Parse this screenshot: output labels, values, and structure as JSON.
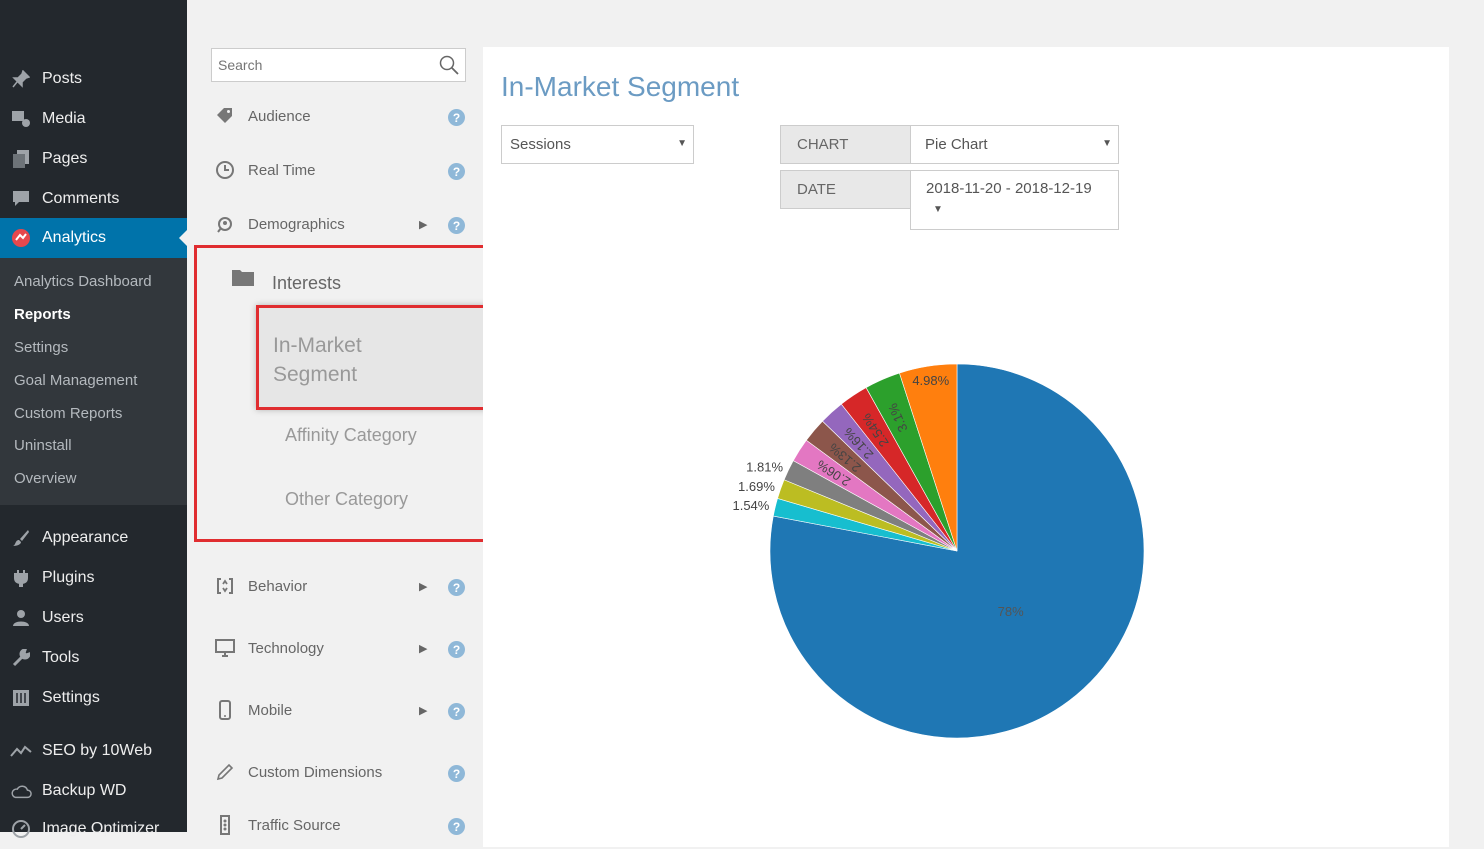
{
  "wp_menu": [
    {
      "label": "Posts",
      "icon": "pin-icon"
    },
    {
      "label": "Media",
      "icon": "media-icon"
    },
    {
      "label": "Pages",
      "icon": "pages-icon"
    },
    {
      "label": "Comments",
      "icon": "comment-icon"
    },
    {
      "label": "Analytics",
      "icon": "analytics-icon",
      "active": true
    },
    {
      "label": "Appearance",
      "icon": "brush-icon"
    },
    {
      "label": "Plugins",
      "icon": "plugin-icon"
    },
    {
      "label": "Users",
      "icon": "users-icon"
    },
    {
      "label": "Tools",
      "icon": "wrench-icon"
    },
    {
      "label": "Settings",
      "icon": "settings-icon"
    },
    {
      "label": "SEO by 10Web",
      "icon": "seo-icon"
    },
    {
      "label": "Backup WD",
      "icon": "cloud-icon"
    },
    {
      "label": "Image Optimizer",
      "icon": "gauge-icon"
    }
  ],
  "wp_submenu": [
    "Analytics Dashboard",
    "Reports",
    "Settings",
    "Goal Management",
    "Custom Reports",
    "Uninstall",
    "Overview"
  ],
  "search": {
    "placeholder": "Search",
    "value": ""
  },
  "report_nav": {
    "audience": "Audience",
    "real_time": "Real Time",
    "demographics": "Demographics",
    "interests": "Interests",
    "in_market_segment_line1": "In-Market",
    "in_market_segment_line2": "Segment",
    "affinity_category": "Affinity Category",
    "other_category": "Other Category",
    "behavior": "Behavior",
    "technology": "Technology",
    "mobile": "Mobile",
    "custom_dimensions": "Custom Dimensions",
    "traffic_source": "Traffic Source",
    "help_glyph": "?",
    "arrow_right": "▶",
    "arrow_down": "▼"
  },
  "main": {
    "title": "In-Market Segment",
    "metric_select": "Sessions",
    "chart_label": "CHART",
    "chart_select": "Pie Chart",
    "date_label": "DATE",
    "date_value": "2018-11-20 - 2018-12-19",
    "caret": "▼"
  },
  "colors": {
    "accent": "#0073aa",
    "highlight": "#e02d30",
    "title": "#6b9bc3"
  },
  "chart_data": {
    "type": "pie",
    "slices": [
      {
        "label": "78%",
        "value": 78.0,
        "color": "#1f77b4"
      },
      {
        "label": "1.54%",
        "value": 1.54,
        "color": "#17becf"
      },
      {
        "label": "1.69%",
        "value": 1.69,
        "color": "#bcbd22"
      },
      {
        "label": "1.81%",
        "value": 1.81,
        "color": "#7f7f7f"
      },
      {
        "label": "2.06%",
        "value": 2.06,
        "color": "#e377c2"
      },
      {
        "label": "2.13%",
        "value": 2.13,
        "color": "#8c564b"
      },
      {
        "label": "2.16%",
        "value": 2.16,
        "color": "#9467bd"
      },
      {
        "label": "2.54%",
        "value": 2.54,
        "color": "#d62728"
      },
      {
        "label": "3.1%",
        "value": 3.1,
        "color": "#2ca02c"
      },
      {
        "label": "4.98%",
        "value": 4.98,
        "color": "#ff7f0e"
      }
    ]
  }
}
